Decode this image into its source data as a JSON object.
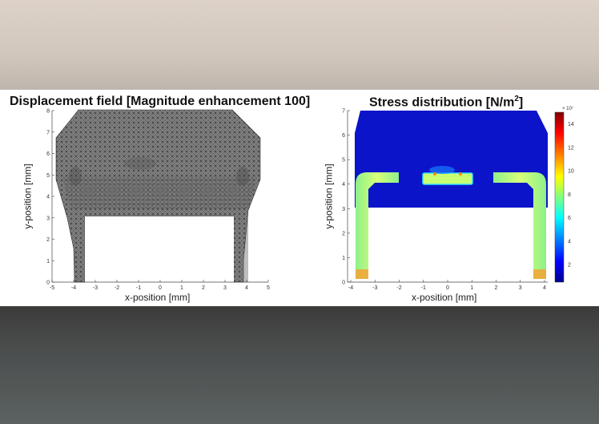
{
  "left_panel": {
    "title": "Displacement field [Magnitude enhancement 100]",
    "xlabel": "x-position [mm]",
    "ylabel": "y-position [mm]",
    "xticks": [
      "-5",
      "-4",
      "-3",
      "-2",
      "-1",
      "0",
      "1",
      "2",
      "3",
      "4",
      "5"
    ],
    "yticks": [
      "0",
      "1",
      "2",
      "3",
      "4",
      "5",
      "6",
      "7",
      "8"
    ]
  },
  "right_panel": {
    "title_main": "Stress distribution [N/m",
    "title_sup": "2",
    "title_end": "]",
    "xlabel": "x-position [mm]",
    "ylabel": "y-position [mm]",
    "xticks": [
      "-4",
      "-3",
      "-2",
      "-1",
      "0",
      "1",
      "2",
      "3",
      "4"
    ],
    "yticks": [
      "0",
      "1",
      "2",
      "3",
      "4",
      "5",
      "6",
      "7"
    ],
    "colorbar": {
      "exponent": "× 10⁷",
      "ticks": [
        "2",
        "4",
        "6",
        "8",
        "10",
        "12",
        "14"
      ],
      "colors": [
        "#00008f",
        "#0000ff",
        "#00ffff",
        "#ffff00",
        "#ff0000",
        "#800000"
      ]
    }
  }
}
